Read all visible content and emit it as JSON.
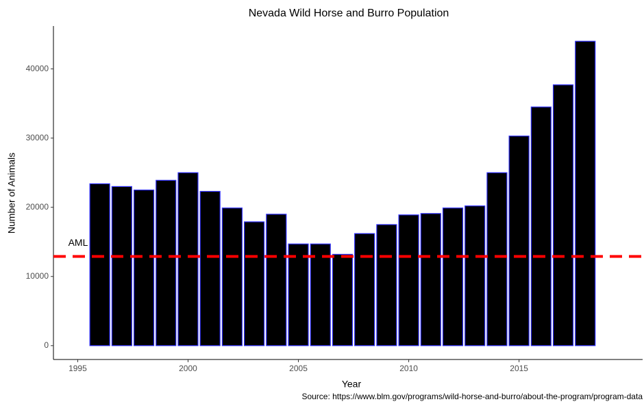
{
  "chart_data": {
    "type": "bar",
    "title": "Nevada Wild Horse and Burro Population",
    "x_label": "Year",
    "y_label": "Number of Animals",
    "caption": "Source: https://www.blm.gov/programs/wild-horse-and-burro/about-the-program/program-data",
    "x": [
      1996,
      1997,
      1998,
      1999,
      2000,
      2001,
      2002,
      2003,
      2004,
      2005,
      2006,
      2007,
      2008,
      2009,
      2010,
      2011,
      2012,
      2013,
      2014,
      2015,
      2016,
      2017,
      2018
    ],
    "values": [
      23400,
      23000,
      22500,
      23900,
      25000,
      22300,
      19900,
      17900,
      19000,
      14700,
      14700,
      13200,
      16200,
      17500,
      18900,
      19100,
      19900,
      20200,
      25000,
      30300,
      34500,
      37700,
      44000
    ],
    "color": "#000000",
    "edge_color": "#3030ff",
    "xlim": [
      1993.9,
      2020.6
    ],
    "xticks": [
      1995,
      2000,
      2005,
      2010,
      2015
    ],
    "ylim": [
      -2000,
      46200
    ],
    "yticks": [
      0,
      10000,
      20000,
      30000,
      40000
    ],
    "hline": {
      "value": 12900,
      "label": "AML",
      "color": "#ff0000"
    },
    "grid": false
  }
}
